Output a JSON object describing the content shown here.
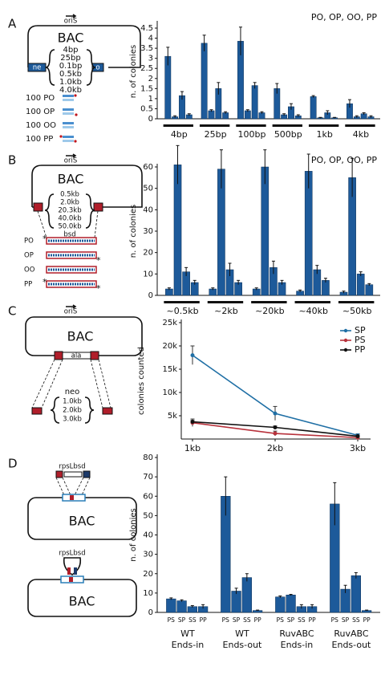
{
  "panel_labels": [
    "A",
    "B",
    "C",
    "D"
  ],
  "chart_data": [
    {
      "type": "bar",
      "legend": "PO, OP, OO, PP",
      "ylabel": "n. of colonies",
      "categories": [
        "4bp",
        "25bp",
        "100bp",
        "500bp",
        "1kb",
        "4kb"
      ],
      "series": [
        {
          "color": "#1d5a9a",
          "values": [
            3.1,
            3.75,
            3.85,
            1.5,
            1.1,
            0.75
          ],
          "errors": [
            0.45,
            0.4,
            0.7,
            0.25,
            0.05,
            0.2
          ]
        },
        {
          "color": "#1d5a9a",
          "values": [
            0.1,
            0.4,
            0.4,
            0.2,
            0.05,
            0.1
          ],
          "errors": [
            0.05,
            0.05,
            0.05,
            0.05,
            0.02,
            0.05
          ]
        },
        {
          "color": "#1d5a9a",
          "values": [
            1.15,
            1.5,
            1.65,
            0.6,
            0.3,
            0.25
          ],
          "errors": [
            0.2,
            0.3,
            0.15,
            0.15,
            0.1,
            0.05
          ]
        },
        {
          "color": "#1d5a9a",
          "values": [
            0.2,
            0.3,
            0.3,
            0.15,
            0.05,
            0.1
          ],
          "errors": [
            0.05,
            0.05,
            0.05,
            0.05,
            0.02,
            0.05
          ]
        }
      ],
      "ylim": [
        0,
        4.7
      ],
      "yticks": [
        0,
        0.5,
        1,
        1.5,
        2,
        2.5,
        3,
        3.5,
        4,
        4.5
      ]
    },
    {
      "type": "bar",
      "legend": "PO, OP, OO, PP",
      "ylabel": "n. of colonies",
      "categories": [
        "~0.5kb",
        "~2kb",
        "~20kb",
        "~40kb",
        "~50kb"
      ],
      "series": [
        {
          "color": "#1d5a9a",
          "values": [
            3,
            3,
            3,
            2,
            1.5
          ],
          "errors": [
            0.5,
            0.5,
            0.5,
            0.5,
            0.5
          ]
        },
        {
          "color": "#1d5a9a",
          "values": [
            61,
            59,
            60,
            58,
            55
          ],
          "errors": [
            9,
            9,
            8,
            8,
            9
          ]
        },
        {
          "color": "#1d5a9a",
          "values": [
            11,
            12,
            13,
            12,
            10
          ],
          "errors": [
            2,
            3,
            3,
            2,
            1
          ]
        },
        {
          "color": "#1d5a9a",
          "values": [
            6,
            6,
            6,
            7,
            5
          ],
          "errors": [
            1,
            1,
            1,
            1,
            0.5
          ]
        }
      ],
      "ylim": [
        0,
        60
      ],
      "yticks": [
        0,
        10,
        20,
        30,
        40,
        50,
        60
      ]
    },
    {
      "type": "line",
      "ylabel": "colonies counted",
      "categories": [
        "1kb",
        "2kb",
        "3kb"
      ],
      "series": [
        {
          "name": "SP",
          "color": "#1f6fa5",
          "values": [
            18000,
            5500,
            800
          ],
          "errors": [
            2000,
            1500,
            300
          ]
        },
        {
          "name": "PS",
          "color": "#b8323c",
          "values": [
            3500,
            1200,
            300
          ],
          "errors": [
            800,
            500,
            100
          ]
        },
        {
          "name": "PP",
          "color": "#111111",
          "values": [
            3700,
            2500,
            600
          ],
          "errors": [
            300,
            300,
            100
          ]
        }
      ],
      "ylim": [
        0,
        25000
      ],
      "yticks": [
        {
          "value": 5000,
          "label": "5k"
        },
        {
          "value": 10000,
          "label": "10k"
        },
        {
          "value": 15000,
          "label": "15k"
        },
        {
          "value": 20000,
          "label": "20k"
        },
        {
          "value": 25000,
          "label": "25k"
        }
      ]
    },
    {
      "type": "bar",
      "ylabel": "n. of colonies",
      "categories": [
        [
          "WT",
          "Ends-in"
        ],
        [
          "WT",
          "Ends-out"
        ],
        [
          "RuvABC",
          "Ends-in"
        ],
        [
          "RuvABC",
          "Ends-out"
        ]
      ],
      "series": [
        {
          "name": "PS",
          "color": "#1d5a9a",
          "values": [
            7,
            60,
            8,
            56
          ],
          "errors": [
            0.5,
            10,
            0.5,
            11
          ]
        },
        {
          "name": "SP",
          "color": "#1d5a9a",
          "values": [
            6,
            11,
            9,
            12
          ],
          "errors": [
            0.5,
            1.5,
            0.3,
            2
          ]
        },
        {
          "name": "SS",
          "color": "#1d5a9a",
          "values": [
            3,
            18,
            3,
            19
          ],
          "errors": [
            0.5,
            2,
            1,
            1.5
          ]
        },
        {
          "name": "PP",
          "color": "#1d5a9a",
          "values": [
            3,
            1,
            3,
            1
          ],
          "errors": [
            1,
            0.2,
            1,
            0.2
          ]
        }
      ],
      "ylim": [
        0,
        80
      ],
      "yticks": [
        0,
        10,
        20,
        30,
        40,
        50,
        60,
        70,
        80
      ]
    }
  ],
  "diagrams": {
    "a": {
      "ori": "oriS",
      "bac": "BAC",
      "left_marker": "ne",
      "right_marker": "o",
      "sizes": [
        "4bp",
        "25bp",
        "0.1bp",
        "0.5kb",
        "1.0kb",
        "4.0kb"
      ],
      "rows": [
        "100 PO",
        "100 OP",
        "100 OO",
        "100 PP"
      ]
    },
    "b": {
      "ori": "oriS",
      "bac": "BAC",
      "sizes": [
        "0.5kb",
        "2.0kb",
        "20.3kb",
        "40.0kb",
        "50.0kb"
      ],
      "marker": "bsd",
      "rows": [
        "PO",
        "OP",
        "OO",
        "PP"
      ]
    },
    "c": {
      "ori": "oriS",
      "bac": "BAC",
      "insert": "ala",
      "marker": "neo",
      "sizes": [
        "1.0kb",
        "2.0kb",
        "3.0kb"
      ]
    },
    "d": {
      "top_label": "rpsLbsd",
      "top_bac": "BAC",
      "bottom_label": "rpsLbsd",
      "bottom_bac": "BAC"
    }
  }
}
